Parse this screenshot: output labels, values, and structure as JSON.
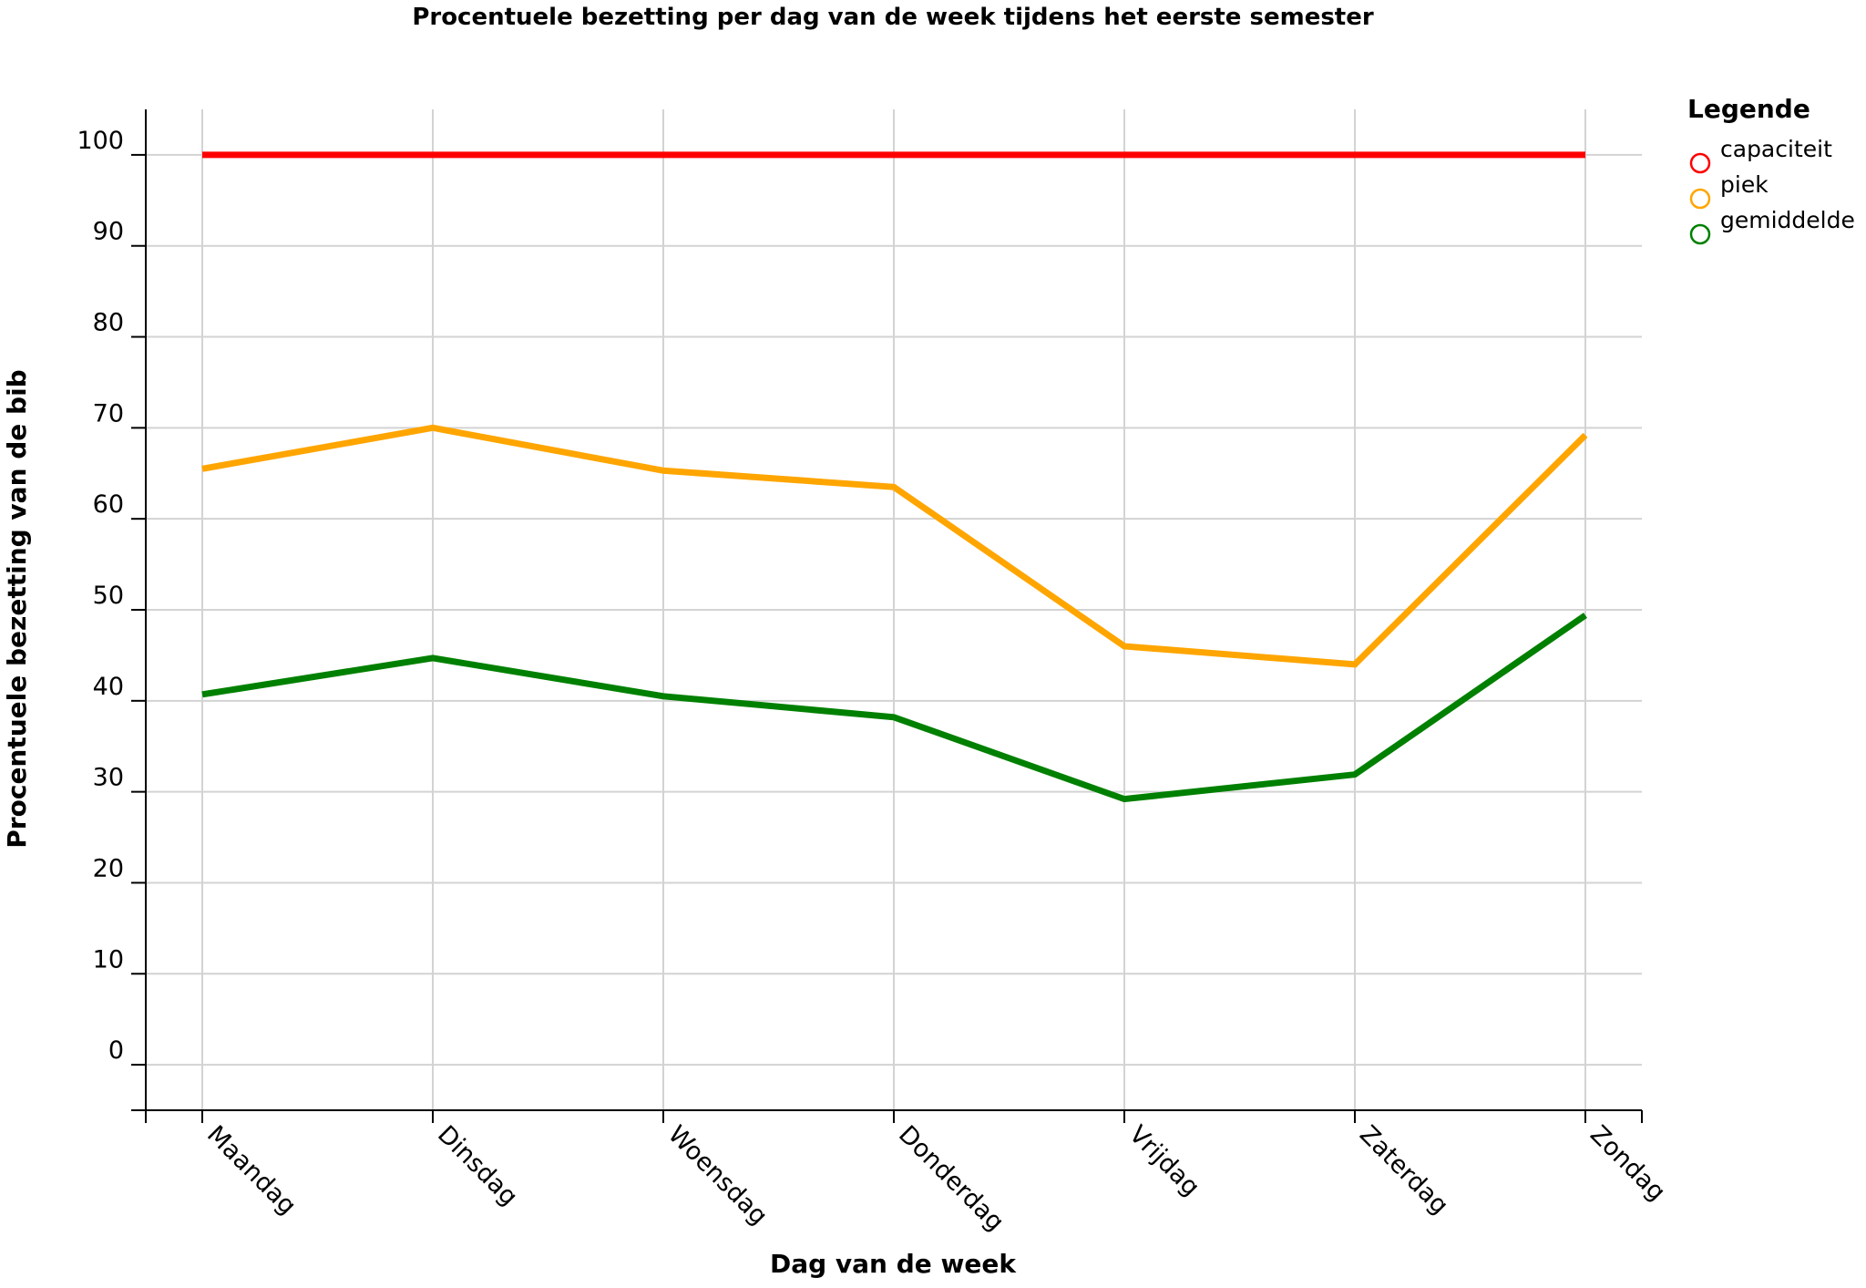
{
  "chart_data": {
    "type": "line",
    "title": "Procentuele bezetting per dag van de week tijdens het eerste semester",
    "xlabel": "Dag van de week",
    "ylabel": "Procentuele bezetting van de bib",
    "categories": [
      "Maandag",
      "Dinsdag",
      "Woensdag",
      "Donderdag",
      "Vrijdag",
      "Zaterdag",
      "Zondag"
    ],
    "yticks": [
      0,
      10,
      20,
      30,
      40,
      50,
      60,
      70,
      80,
      90,
      100
    ],
    "ylim": [
      -5,
      105
    ],
    "grid": true,
    "legend_title": "Legende",
    "legend_position": "right",
    "series": [
      {
        "name": "capaciteit",
        "color": "#ff0000",
        "values": [
          100,
          100,
          100,
          100,
          100,
          100,
          100
        ]
      },
      {
        "name": "piek",
        "color": "#ffa500",
        "values": [
          65.5,
          70,
          65.3,
          63.5,
          46,
          44,
          69.2
        ]
      },
      {
        "name": "gemiddelde",
        "color": "#008000",
        "values": [
          40.7,
          44.7,
          40.5,
          38.2,
          29.2,
          31.9,
          49.4
        ]
      }
    ]
  }
}
